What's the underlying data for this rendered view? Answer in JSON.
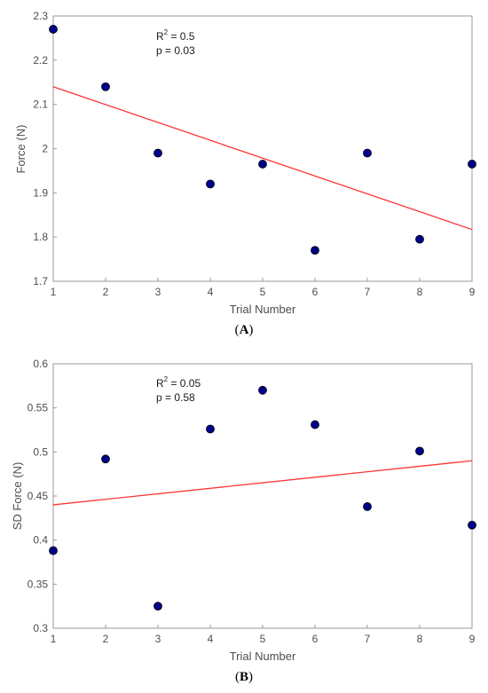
{
  "chart_data": [
    {
      "type": "scatter",
      "panel": "A",
      "xlabel": "Trial Number",
      "ylabel": "Force (N)",
      "xlim": [
        1,
        9
      ],
      "ylim": [
        1.7,
        2.3
      ],
      "xticks": [
        "1",
        "2",
        "3",
        "4",
        "5",
        "6",
        "7",
        "8",
        "9"
      ],
      "yticks": [
        "1.7",
        "1.8",
        "1.9",
        "2",
        "2.1",
        "2.2",
        "2.3"
      ],
      "x": [
        1,
        2,
        3,
        4,
        5,
        6,
        7,
        8,
        9
      ],
      "y": [
        2.27,
        2.14,
        1.99,
        1.92,
        1.965,
        1.77,
        1.99,
        1.795,
        1.965
      ],
      "fit_line": {
        "x": [
          1,
          9
        ],
        "y": [
          2.14,
          1.817
        ]
      },
      "annotation": {
        "r2_prefix": "R",
        "r2_sup": "2",
        "r2_value": " = 0.5",
        "p_text": "p = 0.03"
      },
      "grid": false,
      "colors": {
        "points": "#00008b",
        "point_edge": "#000000",
        "fit": "#ff3333",
        "axis": "#999999"
      }
    },
    {
      "type": "scatter",
      "panel": "B",
      "xlabel": "Trial Number",
      "ylabel": "SD Force (N)",
      "xlim": [
        1,
        9
      ],
      "ylim": [
        0.3,
        0.6
      ],
      "xticks": [
        "1",
        "2",
        "3",
        "4",
        "5",
        "6",
        "7",
        "8",
        "9"
      ],
      "yticks": [
        "0.3",
        "0.35",
        "0.4",
        "0.45",
        "0.5",
        "0.55",
        "0.6"
      ],
      "x": [
        1,
        2,
        3,
        4,
        5,
        6,
        7,
        8,
        9
      ],
      "y": [
        0.388,
        0.492,
        0.325,
        0.526,
        0.57,
        0.531,
        0.438,
        0.501,
        0.417
      ],
      "fit_line": {
        "x": [
          1,
          9
        ],
        "y": [
          0.44,
          0.49
        ]
      },
      "annotation": {
        "r2_prefix": "R",
        "r2_sup": "2",
        "r2_value": " = 0.05",
        "p_text": "p = 0.58"
      },
      "grid": false,
      "colors": {
        "points": "#00008b",
        "point_edge": "#000000",
        "fit": "#ff3333",
        "axis": "#999999"
      }
    }
  ],
  "captions": [
    {
      "open": "(",
      "letter": "A",
      "close": ")"
    },
    {
      "open": "(",
      "letter": "B",
      "close": ")"
    }
  ]
}
